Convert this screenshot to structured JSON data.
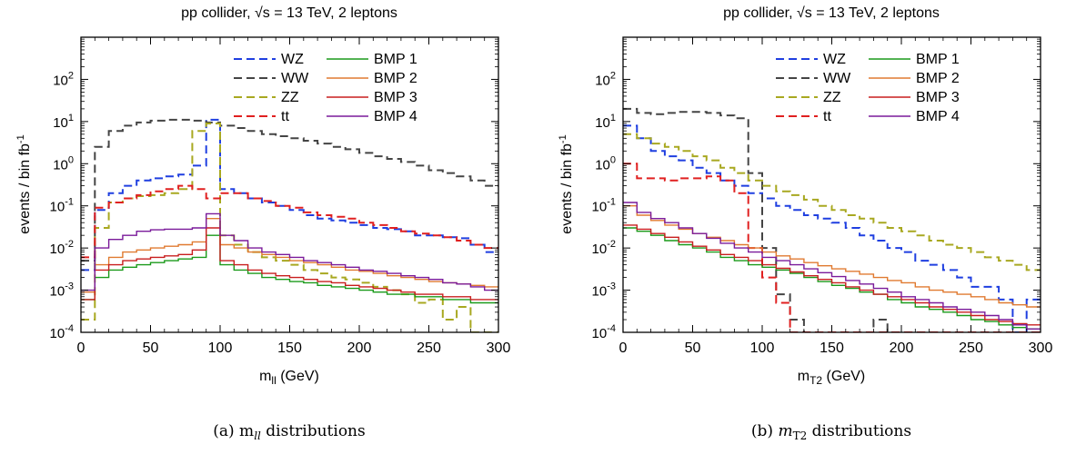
{
  "colors": {
    "WZ": "#1f3fe0",
    "WW": "#444444",
    "ZZ": "#a8a820",
    "tt": "#e02020",
    "BMP 1": "#1a9a1a",
    "BMP 2": "#e07a30",
    "BMP 3": "#c81e1e",
    "BMP 4": "#7a1a9a"
  },
  "chart_data": [
    {
      "type": "line",
      "step": true,
      "title": "pp collider, √s = 13 TeV, 2 leptons",
      "xlabel": "m_ll (GeV)",
      "ylabel": "events / bin fb^-1",
      "caption": "(a)  m_ll distributions",
      "xlim": [
        0,
        300
      ],
      "ylim": [
        0.0001,
        1000
      ],
      "yscale": "log",
      "xticks": [
        0,
        50,
        100,
        150,
        200,
        250,
        300
      ],
      "yticks": [
        "10^-4",
        "10^-3",
        "10^-2",
        "10^-1",
        "10^0",
        "10^1",
        "10^2"
      ],
      "legend_position": "top-right",
      "bin_width": 10,
      "series": [
        {
          "name": "WZ",
          "dashed": true,
          "values": [
            0.003,
            0.08,
            0.2,
            0.3,
            0.4,
            0.45,
            0.5,
            0.55,
            0.9,
            11,
            0.25,
            0.2,
            0.15,
            0.12,
            0.1,
            0.08,
            0.06,
            0.05,
            0.045,
            0.04,
            0.035,
            0.03,
            0.028,
            0.025,
            0.02,
            0.02,
            0.018,
            0.017,
            0.012,
            0.008
          ]
        },
        {
          "name": "WW",
          "dashed": true,
          "values": [
            0.005,
            2.5,
            6,
            8,
            9.5,
            10.5,
            11,
            11,
            10.5,
            9.5,
            8,
            7,
            6,
            5,
            4.5,
            4,
            3.5,
            3,
            2.5,
            2.2,
            1.8,
            1.5,
            1.3,
            1.1,
            0.9,
            0.7,
            0.6,
            0.5,
            0.4,
            0.3
          ]
        },
        {
          "name": "ZZ",
          "dashed": true,
          "values": [
            0.0002,
            0.03,
            0.12,
            0.15,
            0.17,
            0.18,
            0.2,
            0.25,
            6,
            9,
            0.02,
            0.012,
            0.008,
            0.006,
            0.005,
            0.004,
            0.003,
            0.0025,
            0.002,
            0.0018,
            0.0015,
            0.0012,
            0.001,
            0.0008,
            0.0005,
            0.0006,
            0.0002,
            0.0004,
            0.0001,
            0.0001
          ]
        },
        {
          "name": "tt",
          "dashed": true,
          "values": [
            0.006,
            0.09,
            0.12,
            0.15,
            0.18,
            0.22,
            0.25,
            0.3,
            0.25,
            0.15,
            0.2,
            0.2,
            0.15,
            0.13,
            0.1,
            0.09,
            0.07,
            0.06,
            0.055,
            0.05,
            0.04,
            0.035,
            0.03,
            0.025,
            0.022,
            0.02,
            0.018,
            0.015,
            0.012,
            0.01
          ]
        },
        {
          "name": "BMP 1",
          "dashed": false,
          "values": [
            0.0006,
            0.002,
            0.003,
            0.0035,
            0.004,
            0.0045,
            0.005,
            0.0055,
            0.006,
            0.02,
            0.004,
            0.003,
            0.0025,
            0.002,
            0.0018,
            0.0016,
            0.0015,
            0.0013,
            0.0012,
            0.0011,
            0.001,
            0.0009,
            0.0008,
            0.0008,
            0.0007,
            0.0007,
            0.0006,
            0.0006,
            0.0005,
            0.0005
          ]
        },
        {
          "name": "BMP 2",
          "dashed": false,
          "values": [
            0.0009,
            0.004,
            0.006,
            0.008,
            0.009,
            0.01,
            0.011,
            0.012,
            0.014,
            0.05,
            0.012,
            0.01,
            0.008,
            0.007,
            0.006,
            0.005,
            0.0045,
            0.004,
            0.0035,
            0.003,
            0.0028,
            0.0025,
            0.0022,
            0.002,
            0.0018,
            0.0016,
            0.0015,
            0.0014,
            0.0013,
            0.0012
          ]
        },
        {
          "name": "BMP 3",
          "dashed": false,
          "values": [
            0.0006,
            0.003,
            0.004,
            0.005,
            0.0055,
            0.006,
            0.0065,
            0.007,
            0.009,
            0.03,
            0.005,
            0.004,
            0.003,
            0.0025,
            0.0022,
            0.002,
            0.0018,
            0.0016,
            0.0015,
            0.0013,
            0.0012,
            0.0011,
            0.001,
            0.0009,
            0.0008,
            0.0008,
            0.0007,
            0.0007,
            0.0006,
            0.0006
          ]
        },
        {
          "name": "BMP 4",
          "dashed": false,
          "values": [
            0.001,
            0.01,
            0.016,
            0.02,
            0.025,
            0.027,
            0.028,
            0.028,
            0.03,
            0.065,
            0.02,
            0.015,
            0.01,
            0.008,
            0.007,
            0.006,
            0.005,
            0.0045,
            0.004,
            0.0035,
            0.003,
            0.0028,
            0.0025,
            0.0022,
            0.002,
            0.0018,
            0.0015,
            0.0014,
            0.0012,
            0.001
          ]
        }
      ]
    },
    {
      "type": "line",
      "step": true,
      "title": "pp collider, √s = 13 TeV, 2 leptons",
      "xlabel": "m_T2 (GeV)",
      "ylabel": "events / bin fb^-1",
      "caption": "(b)  m_T2 distributions",
      "xlim": [
        0,
        300
      ],
      "ylim": [
        0.0001,
        1000
      ],
      "yscale": "log",
      "xticks": [
        0,
        50,
        100,
        150,
        200,
        250,
        300
      ],
      "yticks": [
        "10^-4",
        "10^-3",
        "10^-2",
        "10^-1",
        "10^0",
        "10^1",
        "10^2"
      ],
      "legend_position": "top-right",
      "bin_width": 10,
      "series": [
        {
          "name": "WZ",
          "dashed": true,
          "values": [
            8,
            4,
            2,
            1.5,
            1.2,
            0.8,
            0.6,
            0.4,
            0.3,
            0.2,
            0.15,
            0.1,
            0.08,
            0.06,
            0.05,
            0.04,
            0.03,
            0.02,
            0.015,
            0.01,
            0.008,
            0.005,
            0.004,
            0.003,
            0.002,
            0.0012,
            0.0012,
            0.0006,
            0.0001,
            0.0006
          ]
        },
        {
          "name": "WW",
          "dashed": true,
          "values": [
            20,
            16,
            15,
            16,
            17,
            17,
            16,
            14,
            12,
            0.6,
            0.01,
            0.0008,
            0.0002,
            0.0001,
            0.0001,
            0.0001,
            0.0001,
            0.0001,
            0.0002,
            0.0001,
            0.0001,
            0.0001,
            0.0001,
            0.0001,
            0.0001,
            0.0001,
            0.0001,
            0.0001,
            0.0001,
            0.0001
          ]
        },
        {
          "name": "ZZ",
          "dashed": true,
          "values": [
            5,
            4,
            3,
            2.5,
            2,
            1.5,
            1.2,
            0.8,
            0.6,
            0.4,
            0.3,
            0.22,
            0.18,
            0.14,
            0.1,
            0.08,
            0.06,
            0.05,
            0.04,
            0.03,
            0.025,
            0.02,
            0.015,
            0.012,
            0.01,
            0.008,
            0.006,
            0.005,
            0.004,
            0.003
          ]
        },
        {
          "name": "tt",
          "dashed": true,
          "values": [
            1,
            0.45,
            0.45,
            0.4,
            0.45,
            0.45,
            0.5,
            0.4,
            0.2,
            0.01,
            0.002,
            0.0005,
            0.0001,
            0.0001,
            0.0001,
            0.0001,
            0.0001,
            0.0001,
            0.0001,
            0.0001,
            0.0001,
            0.0001,
            0.0001,
            0.0001,
            0.0001,
            0.0001,
            0.0001,
            0.0001,
            0.0001,
            0.0001
          ]
        },
        {
          "name": "BMP 1",
          "dashed": false,
          "values": [
            0.03,
            0.025,
            0.02,
            0.015,
            0.012,
            0.01,
            0.008,
            0.006,
            0.005,
            0.004,
            0.0035,
            0.003,
            0.0025,
            0.002,
            0.0016,
            0.0013,
            0.0011,
            0.0009,
            0.0008,
            0.0006,
            0.0005,
            0.0004,
            0.00035,
            0.0003,
            0.00025,
            0.0002,
            0.00018,
            0.00015,
            0.00013,
            0.00012
          ]
        },
        {
          "name": "BMP 2",
          "dashed": false,
          "values": [
            0.1,
            0.06,
            0.045,
            0.035,
            0.028,
            0.022,
            0.018,
            0.015,
            0.012,
            0.01,
            0.008,
            0.0065,
            0.0055,
            0.0045,
            0.0038,
            0.0032,
            0.0028,
            0.0024,
            0.002,
            0.0017,
            0.0015,
            0.0012,
            0.001,
            0.0009,
            0.0008,
            0.0007,
            0.0006,
            0.0005,
            0.00045,
            0.0004
          ]
        },
        {
          "name": "BMP 3",
          "dashed": false,
          "values": [
            0.035,
            0.028,
            0.022,
            0.018,
            0.014,
            0.011,
            0.009,
            0.007,
            0.006,
            0.005,
            0.004,
            0.0033,
            0.0027,
            0.0022,
            0.0018,
            0.0015,
            0.0012,
            0.001,
            0.0008,
            0.0007,
            0.0006,
            0.0005,
            0.0004,
            0.00035,
            0.0003,
            0.00025,
            0.0002,
            0.00018,
            0.00016,
            0.00015
          ]
        },
        {
          "name": "BMP 4",
          "dashed": false,
          "values": [
            0.12,
            0.07,
            0.05,
            0.04,
            0.03,
            0.022,
            0.017,
            0.013,
            0.01,
            0.008,
            0.006,
            0.005,
            0.004,
            0.0032,
            0.0026,
            0.0021,
            0.0017,
            0.0014,
            0.0011,
            0.0009,
            0.0007,
            0.0006,
            0.0005,
            0.0004,
            0.00035,
            0.0003,
            0.00025,
            0.0002,
            0.00015,
            0.00012
          ]
        }
      ]
    }
  ]
}
